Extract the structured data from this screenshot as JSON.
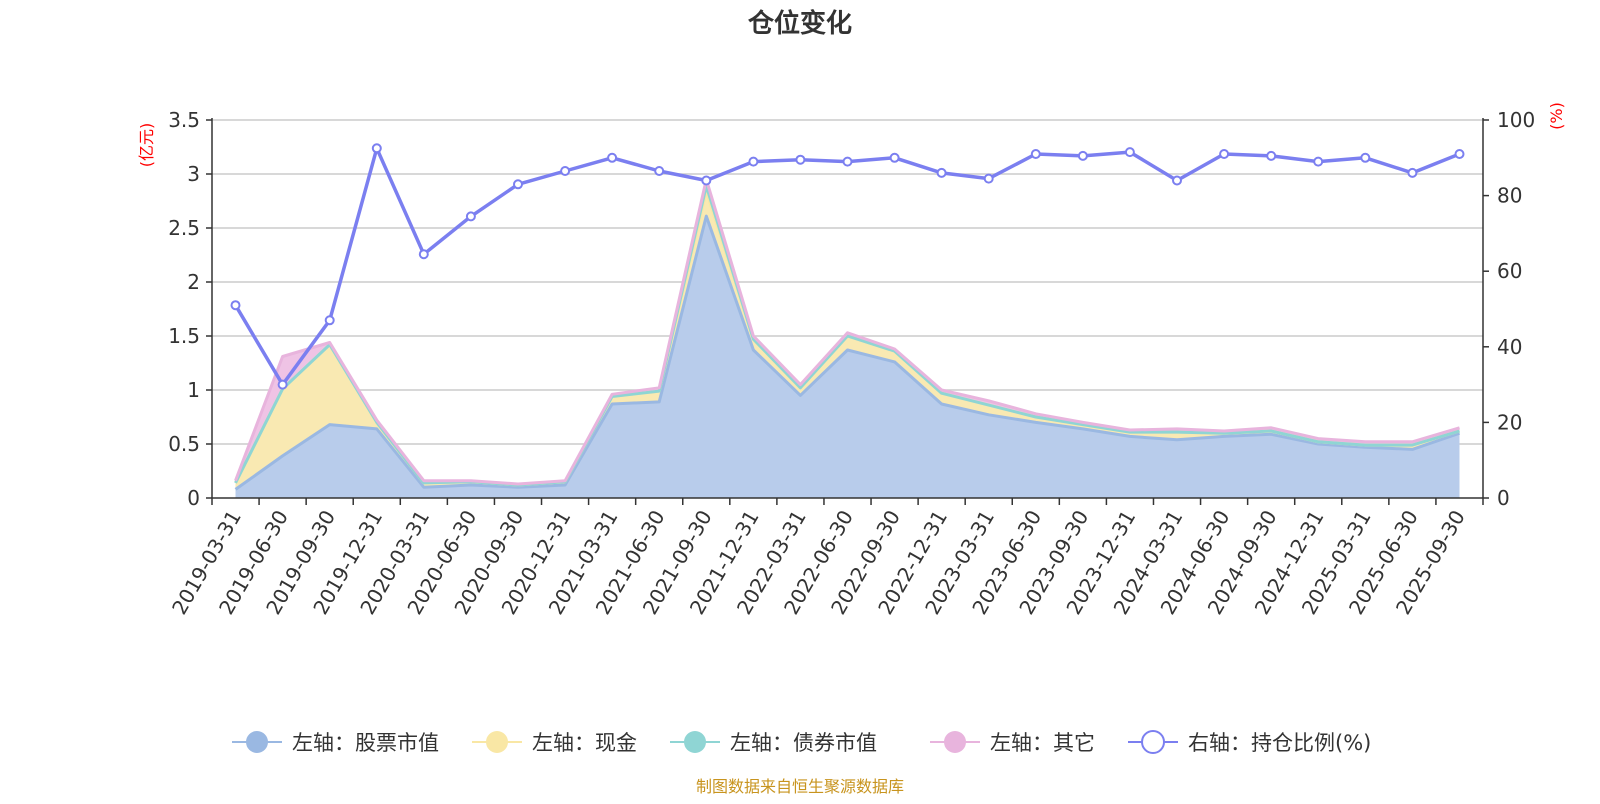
{
  "chart_data": {
    "type": "area",
    "title": "仓位变化",
    "left_axis_unit": "(亿元)",
    "right_axis_unit": "(%)",
    "footer": "制图数据来自恒生聚源数据库",
    "x": [
      "2019-03-31",
      "2019-06-30",
      "2019-09-30",
      "2019-12-31",
      "2020-03-31",
      "2020-06-30",
      "2020-09-30",
      "2020-12-31",
      "2021-03-31",
      "2021-06-30",
      "2021-09-30",
      "2021-12-31",
      "2022-03-31",
      "2022-06-30",
      "2022-09-30",
      "2022-12-31",
      "2023-03-31",
      "2023-06-30",
      "2023-09-30",
      "2023-12-31",
      "2024-03-31",
      "2024-06-30",
      "2024-09-30",
      "2024-12-31",
      "2025-03-31",
      "2025-06-30",
      "2025-09-30"
    ],
    "left_ylim": [
      0,
      3.5
    ],
    "left_ticks": [
      "0",
      "0.5",
      "1",
      "1.5",
      "2",
      "2.5",
      "3",
      "3.5"
    ],
    "right_ylim": [
      0,
      100
    ],
    "right_ticks": [
      "0",
      "20",
      "40",
      "60",
      "80",
      "100"
    ],
    "grid": true,
    "legend_position": "bottom",
    "series": [
      {
        "name": "左轴：股票市值",
        "axis": "left",
        "stack": true,
        "color": "#9ab8e2",
        "fill": "#b8cceb",
        "values": [
          0.08,
          0.39,
          0.68,
          0.64,
          0.1,
          0.12,
          0.1,
          0.12,
          0.87,
          0.89,
          2.61,
          1.37,
          0.95,
          1.37,
          1.26,
          0.87,
          0.77,
          0.7,
          0.64,
          0.57,
          0.54,
          0.57,
          0.59,
          0.5,
          0.47,
          0.45,
          0.6
        ]
      },
      {
        "name": "左轴：现金",
        "axis": "left",
        "stack": true,
        "color": "#f9e7a5",
        "fill": "#f9e9b2",
        "values": [
          0.06,
          0.62,
          0.74,
          0.06,
          0.04,
          0.03,
          0.02,
          0.03,
          0.07,
          0.1,
          0.23,
          0.1,
          0.07,
          0.13,
          0.1,
          0.1,
          0.09,
          0.05,
          0.04,
          0.04,
          0.07,
          0.03,
          0.03,
          0.02,
          0.02,
          0.04,
          0.02
        ]
      },
      {
        "name": "左轴：债券市值",
        "axis": "left",
        "stack": true,
        "color": "#8fd5d4",
        "fill": "#a9e0df",
        "values": [
          0,
          0,
          0,
          0,
          0,
          0,
          0,
          0,
          0,
          0,
          0.05,
          0,
          0,
          0,
          0,
          0,
          0,
          0,
          0,
          0,
          0,
          0,
          0,
          0,
          0,
          0,
          0
        ]
      },
      {
        "name": "左轴：其它",
        "axis": "left",
        "stack": true,
        "color": "#e8b4dd",
        "fill": "#efc3e5",
        "values": [
          0.02,
          0.3,
          0.02,
          0.02,
          0.02,
          0.01,
          0.01,
          0.01,
          0.02,
          0.03,
          0.06,
          0.03,
          0.03,
          0.03,
          0.02,
          0.03,
          0.04,
          0.03,
          0.02,
          0.02,
          0.03,
          0.02,
          0.03,
          0.03,
          0.03,
          0.03,
          0.03
        ]
      },
      {
        "name": "右轴：持仓比例(%)",
        "axis": "right",
        "stack": false,
        "color": "#7b7ff0",
        "values": [
          51,
          30,
          47,
          92.5,
          64.5,
          74.5,
          83,
          86.5,
          90,
          86.5,
          84,
          89,
          89.5,
          89,
          90,
          86,
          84.5,
          91,
          90.5,
          91.5,
          84,
          91,
          90.5,
          89,
          90,
          86,
          91
        ]
      }
    ]
  }
}
